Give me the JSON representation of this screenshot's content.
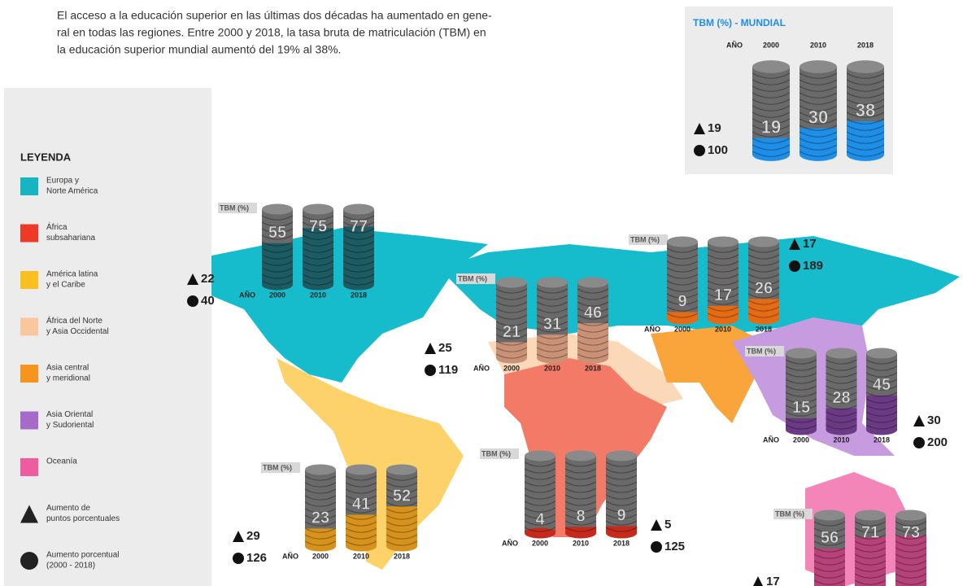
{
  "intro": [
    "El acceso a la educación superior en las últimas dos décadas ha aumentado en gene-",
    "ral en todas las regiones. Entre 2000 y 2018, la tasa bruta de matriculación (TBM) en",
    "la educación superior mundial aumentó del 19% al 38%."
  ],
  "legend": {
    "title": "LEYENDA",
    "items": [
      {
        "label": [
          "Europa y",
          "Norte América"
        ],
        "color": "#15b5c4",
        "shape": "square"
      },
      {
        "label": [
          "África",
          "subsahariana"
        ],
        "color": "#ee3a24",
        "shape": "square"
      },
      {
        "label": [
          "América latina",
          "y el Caribe"
        ],
        "color": "#fcbf20",
        "shape": "square"
      },
      {
        "label": [
          "África del Norte",
          "y Asia Occidental"
        ],
        "color": "#f9c79b",
        "shape": "square"
      },
      {
        "label": [
          "Asia central",
          "y meridional"
        ],
        "color": "#f7941d",
        "shape": "square"
      },
      {
        "label": [
          "Asia Oriental",
          "y Sudoriental"
        ],
        "color": "#a66bc9",
        "shape": "square"
      },
      {
        "label": [
          "Oceanía"
        ],
        "color": "#ee5ca0",
        "shape": "square"
      },
      {
        "label": [
          "Aumento de",
          "puntos porcentuales"
        ],
        "color": "#222222",
        "shape": "triangle"
      },
      {
        "label": [
          "Aumento porcentual",
          "(2000 - 2018)"
        ],
        "color": "#222222",
        "shape": "circle"
      }
    ]
  },
  "world": {
    "title": "TBM (%) - MUNDIAL",
    "year_label": "AÑO",
    "years": [
      "2000",
      "2010",
      "2018"
    ],
    "values": [
      19,
      30,
      38
    ],
    "color": "#1e8ee6",
    "increase_points": 19,
    "increase_percent": 100
  },
  "regions": [
    {
      "tbm_label": "TBM (%)",
      "year_label": "AÑO",
      "years": [
        "2000",
        "2010",
        "2018"
      ],
      "values": [
        55,
        75,
        77
      ],
      "color": "#1d5b63",
      "increase_points": 22,
      "increase_percent": 40
    },
    {
      "tbm_label": "TBM (%)",
      "year_label": "AÑO",
      "years": [
        "2000",
        "2010",
        "2018"
      ],
      "values": [
        9,
        17,
        26
      ],
      "color": "#e46b13",
      "increase_points": 17,
      "increase_percent": 189
    },
    {
      "tbm_label": "TBM (%)",
      "year_label": "AÑO",
      "years": [
        "2000",
        "2010",
        "2018"
      ],
      "values": [
        21,
        31,
        46
      ],
      "color": "#c99276",
      "increase_points": 25,
      "increase_percent": 119
    },
    {
      "tbm_label": "TBM (%)",
      "year_label": "AÑO",
      "years": [
        "2000",
        "2010",
        "2018"
      ],
      "values": [
        15,
        28,
        45
      ],
      "color": "#6b3a84",
      "increase_points": 30,
      "increase_percent": 200
    },
    {
      "tbm_label": "TBM (%)",
      "year_label": "AÑO",
      "years": [
        "2000",
        "2010",
        "2018"
      ],
      "values": [
        23,
        41,
        52
      ],
      "color": "#d6921a",
      "increase_points": 29,
      "increase_percent": 126
    },
    {
      "tbm_label": "TBM (%)",
      "year_label": "AÑO",
      "years": [
        "2000",
        "2010",
        "2018"
      ],
      "values": [
        4,
        8,
        9
      ],
      "color": "#c62a1d",
      "increase_points": 5,
      "increase_percent": 125
    },
    {
      "tbm_label": "TBM (%)",
      "values": [
        56,
        71,
        73
      ],
      "color": "#b6427a",
      "increase_points": 17
    }
  ]
}
